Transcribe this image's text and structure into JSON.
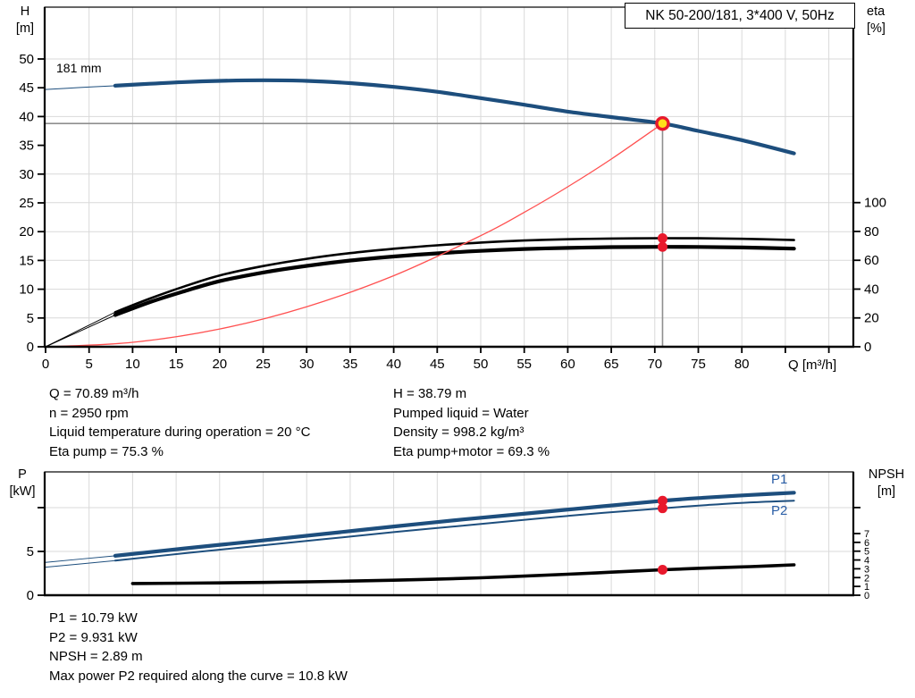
{
  "header": {
    "title": "NK 50-200/181, 3*400 V, 50Hz"
  },
  "labels": {
    "impeller": "181 mm",
    "p1": "P1",
    "p2": "P2",
    "h_axis": [
      "H",
      "[m]"
    ],
    "eta_axis": [
      "eta",
      "[%]"
    ],
    "p_axis": [
      "P",
      "[kW]"
    ],
    "npsh_axis": [
      "NPSH",
      "[m]"
    ],
    "q_axis": "Q [m³/h]"
  },
  "info_top_left": [
    "Q = 70.89 m³/h",
    "n = 2950 rpm",
    "Liquid temperature during operation = 20 °C",
    "Eta pump = 75.3 %"
  ],
  "info_top_right": [
    "H = 38.79 m",
    "Pumped liquid = Water",
    "Density = 998.2 kg/m³",
    "Eta pump+motor = 69.3 %"
  ],
  "info_bottom": [
    "P1 = 10.79 kW",
    "P2 = 9.931 kW",
    "NPSH = 2.89 m",
    "Max power P2 required along the curve = 10.8 kW"
  ],
  "colors": {
    "curve_blue": "#1d4e7d",
    "label_blue": "#2b5fa7",
    "red": "#e8192c",
    "red_light": "#ff5050",
    "yellow": "#ffe01a",
    "grid": "#d9d9d9",
    "crosshair": "#8f8f8f"
  },
  "chart_data": [
    {
      "type": "line",
      "title": "Pump head and efficiency vs flow",
      "xlabel": "Q [m³/h]",
      "x_range": [
        0,
        92.8
      ],
      "left_axis_key": "H",
      "right_axis_key": "eta",
      "left_axis": {
        "label": "H [m]",
        "range": [
          0,
          59
        ]
      },
      "right_axis": {
        "label": "eta [%]",
        "range": [
          0,
          100
        ]
      },
      "x_ticks": [
        0,
        5,
        10,
        15,
        20,
        25,
        30,
        35,
        40,
        45,
        50,
        55,
        60,
        65,
        70,
        75,
        80,
        85,
        90
      ],
      "x_label_limit": 80,
      "left_ticks": [
        {
          "v": 0,
          "l": "0"
        },
        {
          "v": 5,
          "l": "5"
        },
        {
          "v": 10,
          "l": "10"
        },
        {
          "v": 15,
          "l": "15"
        },
        {
          "v": 20,
          "l": "20"
        },
        {
          "v": 25,
          "l": "25"
        },
        {
          "v": 30,
          "l": "30"
        },
        {
          "v": 35,
          "l": "35"
        },
        {
          "v": 40,
          "l": "40"
        },
        {
          "v": 45,
          "l": "45"
        },
        {
          "v": 50,
          "l": "50"
        }
      ],
      "right_ticks": [
        {
          "v": 0,
          "l": "0"
        },
        {
          "v": 20,
          "l": "20"
        },
        {
          "v": 40,
          "l": "40"
        },
        {
          "v": 60,
          "l": "60"
        },
        {
          "v": 80,
          "l": "80"
        },
        {
          "v": 100,
          "l": "100"
        }
      ],
      "grid": {
        "v": [
          5,
          10,
          15,
          20,
          25,
          30,
          35,
          40,
          45,
          50,
          55,
          60,
          65,
          70,
          75,
          80,
          85,
          90
        ],
        "h": [
          {
            "axis": "H",
            "v": 10
          },
          {
            "axis": "H",
            "v": 20
          },
          {
            "axis": "H",
            "v": 30
          },
          {
            "axis": "H",
            "v": 40
          },
          {
            "axis": "H",
            "v": 50
          },
          {
            "axis": "eta",
            "v": 20
          },
          {
            "axis": "eta",
            "v": 60
          },
          {
            "axis": "eta",
            "v": 100
          }
        ]
      },
      "crosshair": {
        "q": 70.89,
        "v": 38.79
      },
      "duty_point": {
        "q": 70.89,
        "axis": "H",
        "v": 38.79
      },
      "dots": [
        {
          "q": 70.89,
          "axis": "eta",
          "v": 75.3
        },
        {
          "q": 70.89,
          "axis": "eta",
          "v": 69.3
        }
      ],
      "series": [
        {
          "name": "head-181mm",
          "label": "181 mm",
          "axis": "H",
          "color": "#1d4e7d",
          "width": 4.2,
          "thin_until": 8,
          "points": [
            [
              0,
              44.7
            ],
            [
              4,
              45.05
            ],
            [
              8,
              45.35
            ],
            [
              12,
              45.7
            ],
            [
              16,
              46.0
            ],
            [
              20,
              46.2
            ],
            [
              25,
              46.3
            ],
            [
              30,
              46.2
            ],
            [
              35,
              45.8
            ],
            [
              40,
              45.15
            ],
            [
              45,
              44.3
            ],
            [
              50,
              43.2
            ],
            [
              55,
              42.05
            ],
            [
              60,
              40.85
            ],
            [
              65,
              39.9
            ],
            [
              70.89,
              38.79
            ],
            [
              75,
              37.5
            ],
            [
              80,
              35.9
            ],
            [
              86,
              33.6
            ]
          ]
        },
        {
          "name": "eta-pump",
          "label": "Eta pump",
          "axis": "eta",
          "color": "#000000",
          "width": 2.6,
          "thin_until": 8,
          "points": [
            [
              0,
              0
            ],
            [
              4,
              12
            ],
            [
              8,
              24
            ],
            [
              12,
              33.5
            ],
            [
              16,
              42
            ],
            [
              20,
              49.5
            ],
            [
              25,
              56
            ],
            [
              30,
              61
            ],
            [
              35,
              65
            ],
            [
              40,
              68
            ],
            [
              45,
              70.4
            ],
            [
              50,
              72.3
            ],
            [
              55,
              73.7
            ],
            [
              60,
              74.6
            ],
            [
              65,
              75.1
            ],
            [
              70.89,
              75.3
            ],
            [
              75,
              75.25
            ],
            [
              80,
              74.9
            ],
            [
              86,
              74.0
            ]
          ]
        },
        {
          "name": "eta-pump-motor",
          "label": "Eta pump+motor",
          "axis": "eta",
          "color": "#000000",
          "width": 4.2,
          "thin_until": 8,
          "points": [
            [
              0,
              0
            ],
            [
              4,
              11
            ],
            [
              8,
              22
            ],
            [
              12,
              31
            ],
            [
              16,
              38.6
            ],
            [
              20,
              45.5
            ],
            [
              25,
              51.5
            ],
            [
              30,
              56.1
            ],
            [
              35,
              59.8
            ],
            [
              40,
              62.6
            ],
            [
              45,
              64.8
            ],
            [
              50,
              66.5
            ],
            [
              55,
              67.8
            ],
            [
              60,
              68.6
            ],
            [
              65,
              69.1
            ],
            [
              70.89,
              69.3
            ],
            [
              75,
              69.25
            ],
            [
              80,
              68.9
            ],
            [
              86,
              68.1
            ]
          ]
        },
        {
          "name": "system-curve",
          "label": "System curve",
          "axis": "H",
          "color": "#ff5050",
          "width": 1.3,
          "points": [
            [
              0,
              0
            ],
            [
              10,
              0.77
            ],
            [
              20,
              3.09
            ],
            [
              30,
              6.95
            ],
            [
              40,
              12.35
            ],
            [
              50,
              19.3
            ],
            [
              55,
              23.35
            ],
            [
              60,
              27.79
            ],
            [
              65,
              32.61
            ],
            [
              70.89,
              38.79
            ]
          ]
        }
      ]
    },
    {
      "type": "line",
      "title": "Power and NPSH vs flow",
      "xlabel": "Q [m³/h]",
      "x_range": [
        0,
        92.8
      ],
      "left_axis_key": "P",
      "right_axis_key": "NPSH",
      "left_axis": {
        "label": "P [kW]",
        "range": [
          0,
          14
        ]
      },
      "right_axis": {
        "label": "NPSH [m]",
        "range": [
          0,
          14
        ]
      },
      "x_ticks": [],
      "x_label_limit": -1,
      "left_ticks": [
        {
          "v": 0,
          "l": "0"
        },
        {
          "v": 5,
          "l": "5"
        },
        {
          "v": 10,
          "l": ""
        }
      ],
      "right_ticks": [
        {
          "v": 0,
          "l": "0"
        },
        {
          "v": 1,
          "l": "1"
        },
        {
          "v": 2,
          "l": "2"
        },
        {
          "v": 3,
          "l": "3"
        },
        {
          "v": 4,
          "l": "4"
        },
        {
          "v": 5,
          "l": "5"
        },
        {
          "v": 6,
          "l": "6"
        },
        {
          "v": 7,
          "l": "7"
        },
        {
          "v": 9.95,
          "l": ""
        }
      ],
      "grid": {
        "v": [
          5,
          10,
          15,
          20,
          25,
          30,
          35,
          40,
          45,
          50,
          55,
          60,
          65,
          70,
          75,
          80,
          85,
          90
        ],
        "h": [
          {
            "axis": "P",
            "v": 5
          },
          {
            "axis": "P",
            "v": 10
          }
        ]
      },
      "dots": [
        {
          "q": 70.89,
          "axis": "P",
          "v": 10.79
        },
        {
          "q": 70.89,
          "axis": "P",
          "v": 9.931
        },
        {
          "q": 70.89,
          "axis": "NPSH",
          "v": 2.89
        }
      ],
      "series": [
        {
          "name": "p1",
          "label": "P1",
          "axis": "P",
          "color": "#1d4e7d",
          "width": 4.2,
          "thin_until": 8,
          "points": [
            [
              0,
              3.75
            ],
            [
              8,
              4.5
            ],
            [
              16,
              5.35
            ],
            [
              24,
              6.15
            ],
            [
              32,
              7.0
            ],
            [
              40,
              7.85
            ],
            [
              48,
              8.65
            ],
            [
              56,
              9.4
            ],
            [
              64,
              10.15
            ],
            [
              70.89,
              10.79
            ],
            [
              76,
              11.15
            ],
            [
              81,
              11.45
            ],
            [
              86,
              11.7
            ]
          ]
        },
        {
          "name": "p2",
          "label": "P2",
          "axis": "P",
          "color": "#1d4e7d",
          "width": 2,
          "thin_until": 8,
          "points": [
            [
              0,
              3.2
            ],
            [
              8,
              3.95
            ],
            [
              16,
              4.8
            ],
            [
              24,
              5.6
            ],
            [
              32,
              6.4
            ],
            [
              40,
              7.2
            ],
            [
              48,
              7.95
            ],
            [
              56,
              8.7
            ],
            [
              64,
              9.4
            ],
            [
              70.89,
              9.931
            ],
            [
              76,
              10.3
            ],
            [
              81,
              10.6
            ],
            [
              86,
              10.8
            ]
          ]
        },
        {
          "name": "npsh",
          "label": "NPSH",
          "axis": "NPSH",
          "color": "#000000",
          "width": 3.6,
          "thin_until": 8,
          "points": [
            [
              0,
              1.3
            ],
            [
              10,
              1.33
            ],
            [
              20,
              1.4
            ],
            [
              30,
              1.52
            ],
            [
              40,
              1.7
            ],
            [
              50,
              1.98
            ],
            [
              60,
              2.38
            ],
            [
              65,
              2.62
            ],
            [
              70.89,
              2.89
            ],
            [
              76,
              3.08
            ],
            [
              81,
              3.25
            ],
            [
              86,
              3.45
            ]
          ]
        }
      ]
    }
  ]
}
